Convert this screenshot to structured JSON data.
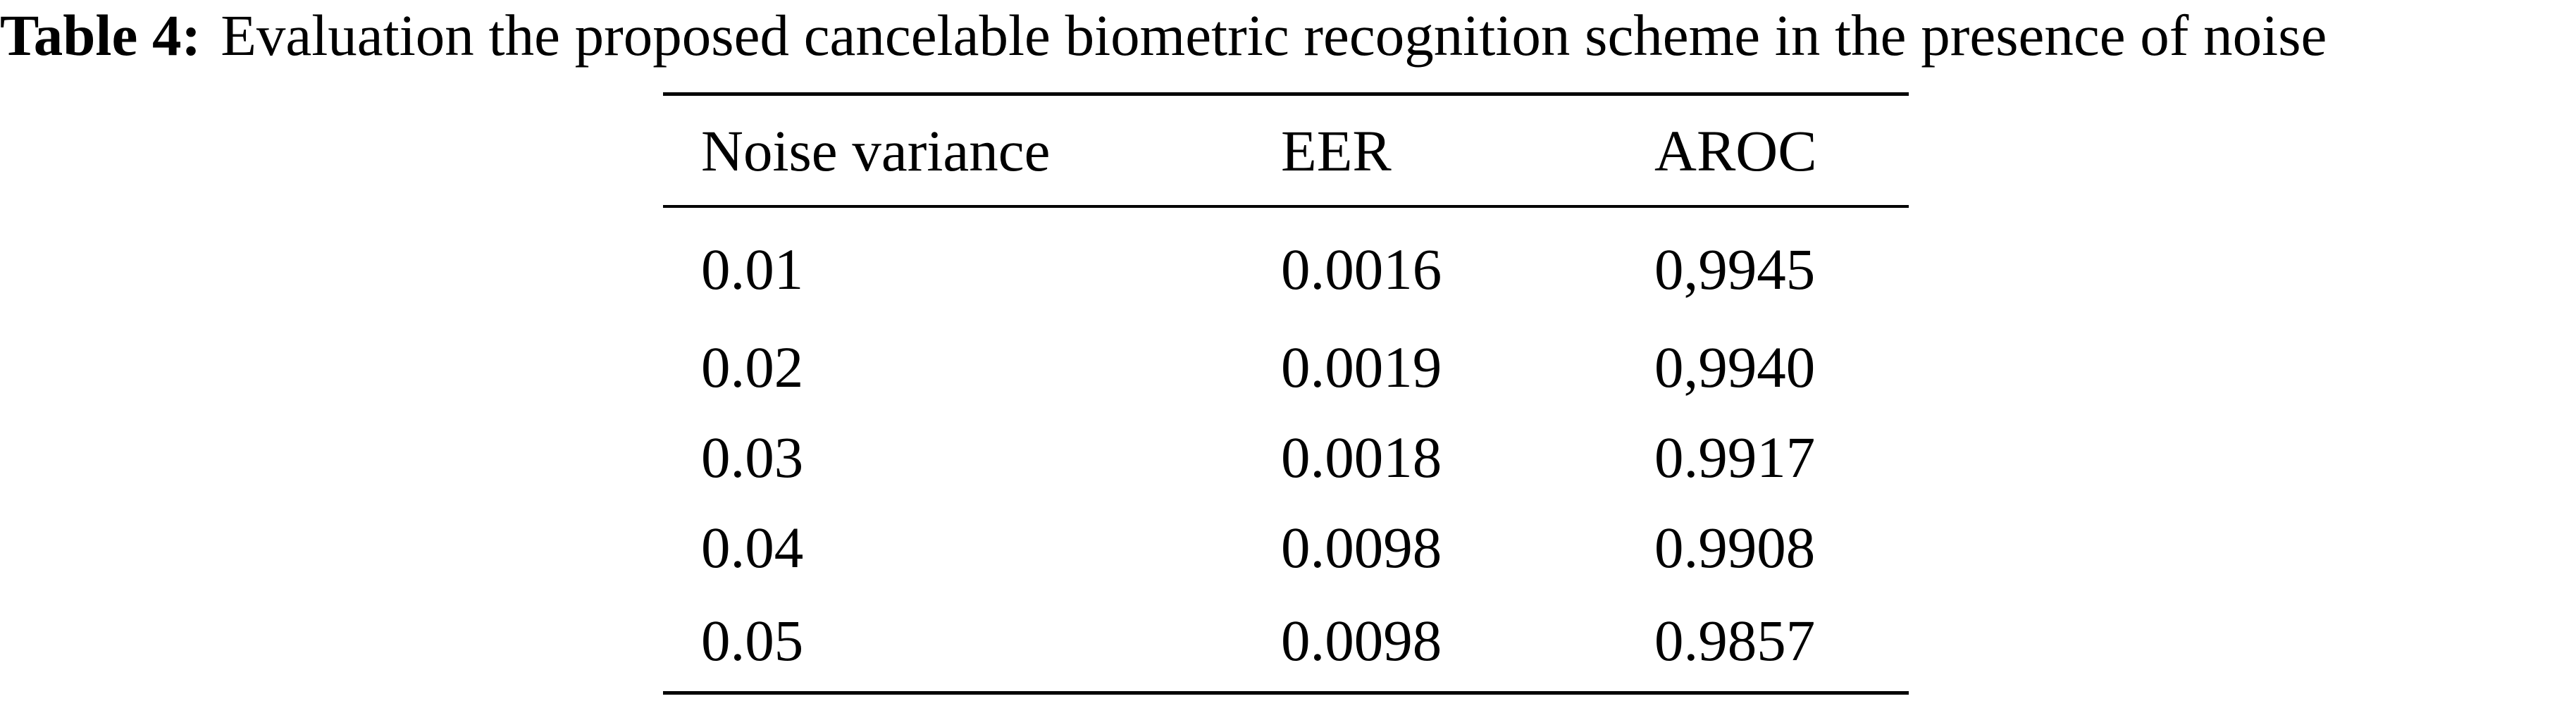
{
  "caption": {
    "label": "Table 4:",
    "text": "Evaluation the proposed cancelable biometric recognition scheme in the presence of noise"
  },
  "table": {
    "headers": [
      "Noise variance",
      "EER",
      "AROC"
    ],
    "rows": [
      [
        "0.01",
        "0.0016",
        "0,9945"
      ],
      [
        "0.02",
        "0.0019",
        "0,9940"
      ],
      [
        "0.03",
        "0.0018",
        "0.9917"
      ],
      [
        "0.04",
        "0.0098",
        "0.9908"
      ],
      [
        "0.05",
        "0.0098",
        "0.9857"
      ]
    ]
  }
}
